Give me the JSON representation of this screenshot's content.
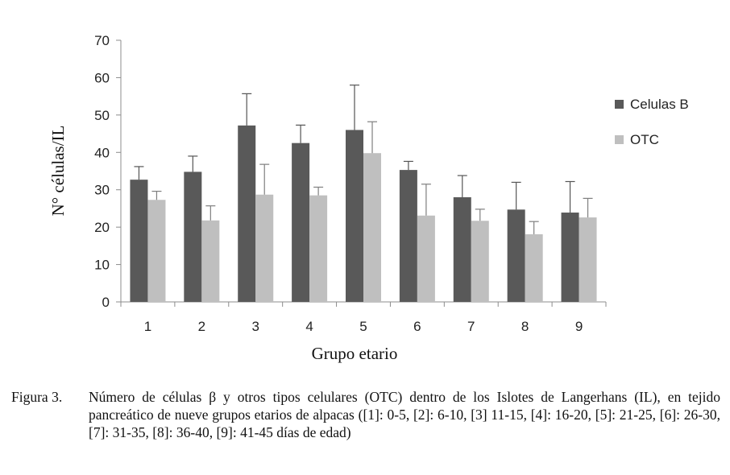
{
  "chart_data": {
    "type": "bar",
    "categories": [
      "1",
      "2",
      "3",
      "4",
      "5",
      "6",
      "7",
      "8",
      "9"
    ],
    "series": [
      {
        "name": "Celulas B",
        "color": "#595959",
        "values": [
          32.7,
          34.8,
          47.2,
          42.5,
          46,
          35.3,
          28,
          24.7,
          23.9
        ],
        "error_upper": [
          36.2,
          39,
          55.7,
          47.3,
          58,
          37.6,
          33.8,
          32,
          32.2
        ]
      },
      {
        "name": "OTC",
        "color": "#bfbfbf",
        "values": [
          27.3,
          21.8,
          28.7,
          28.5,
          39.8,
          23.1,
          21.7,
          18.1,
          22.6
        ],
        "error_upper": [
          29.6,
          25.7,
          36.8,
          30.7,
          48.2,
          31.5,
          24.8,
          21.5,
          27.7
        ]
      }
    ],
    "xlabel": "Grupo etario",
    "ylabel": "N° células/IL",
    "ylim": [
      0,
      70
    ],
    "yticks": [
      "0",
      "10",
      "20",
      "30",
      "40",
      "50",
      "60",
      "70"
    ],
    "grid": false,
    "legend_position": "right"
  },
  "caption": {
    "label": "Figura 3.",
    "text": "Número de células β y otros tipos celulares (OTC) dentro de los Islotes de Langerhans (IL), en tejido pancreático de nueve grupos etarios de alpacas ([1]: 0-5, [2]: 6-10, [3] 11-15, [4]: 16-20, [5]: 21-25, [6]: 26-30, [7]: 31-35, [8]: 36-40, [9]: 41-45 días de edad)"
  }
}
